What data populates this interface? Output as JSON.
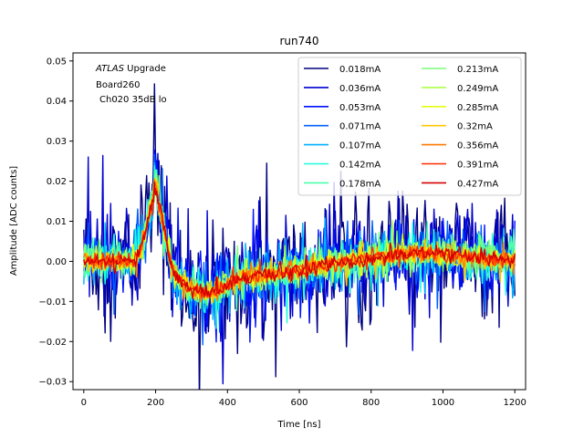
{
  "chart_data": {
    "type": "line",
    "title": "run740",
    "xlabel": "Time [ns]",
    "ylabel": "Amplitude [ADC counts]",
    "xlim": [
      -30,
      1230
    ],
    "ylim": [
      -0.032,
      0.052
    ],
    "xticks": [
      0,
      200,
      400,
      600,
      800,
      1000,
      1200
    ],
    "xtick_labels": [
      "0",
      "200",
      "400",
      "600",
      "800",
      "1000",
      "1200"
    ],
    "yticks": [
      -0.03,
      -0.02,
      -0.01,
      0.0,
      0.01,
      0.02,
      0.03,
      0.04,
      0.05
    ],
    "ytick_labels": [
      "−0.03",
      "−0.02",
      "−0.01",
      "0.00",
      "0.01",
      "0.02",
      "0.03",
      "0.04",
      "0.05"
    ],
    "grid": false,
    "legend_position": "top-right",
    "legend_columns": 2,
    "annotation": {
      "lines": [
        {
          "italic": "ATLAS",
          "rest": " Upgrade"
        },
        {
          "italic": "",
          "rest": " Board260"
        },
        {
          "italic": "",
          "rest": "Ch020 35dB lo"
        }
      ]
    },
    "pulse_model": {
      "x_start": 0,
      "x_end": 1200,
      "x_step": 3.125,
      "peak_x": 200,
      "peak_amplitude": 0.0175,
      "undershoot_x": 330,
      "undershoot_amplitude": -0.0075,
      "late_bump_x": 950,
      "late_bump_amplitude": 0.002
    },
    "series": [
      {
        "name": "0.018mA",
        "color": "#00007f",
        "noise": 0.0095
      },
      {
        "name": "0.036mA",
        "color": "#0000d0",
        "noise": 0.0075
      },
      {
        "name": "0.053mA",
        "color": "#0010ff",
        "noise": 0.0055
      },
      {
        "name": "0.071mA",
        "color": "#0060ff",
        "noise": 0.0045
      },
      {
        "name": "0.107mA",
        "color": "#00b0ff",
        "noise": 0.0036
      },
      {
        "name": "0.142mA",
        "color": "#1cffda",
        "noise": 0.003
      },
      {
        "name": "0.178mA",
        "color": "#4cffaa",
        "noise": 0.0026
      },
      {
        "name": "0.213mA",
        "color": "#7cff79",
        "noise": 0.0022
      },
      {
        "name": "0.249mA",
        "color": "#adff49",
        "noise": 0.0019
      },
      {
        "name": "0.285mA",
        "color": "#e4ff12",
        "noise": 0.0017
      },
      {
        "name": "0.32mA",
        "color": "#ffc400",
        "noise": 0.0015
      },
      {
        "name": "0.356mA",
        "color": "#ff7a00",
        "noise": 0.0013
      },
      {
        "name": "0.391mA",
        "color": "#ff2900",
        "noise": 0.0012
      },
      {
        "name": "0.427mA",
        "color": "#d40000",
        "noise": 0.0011
      }
    ]
  }
}
